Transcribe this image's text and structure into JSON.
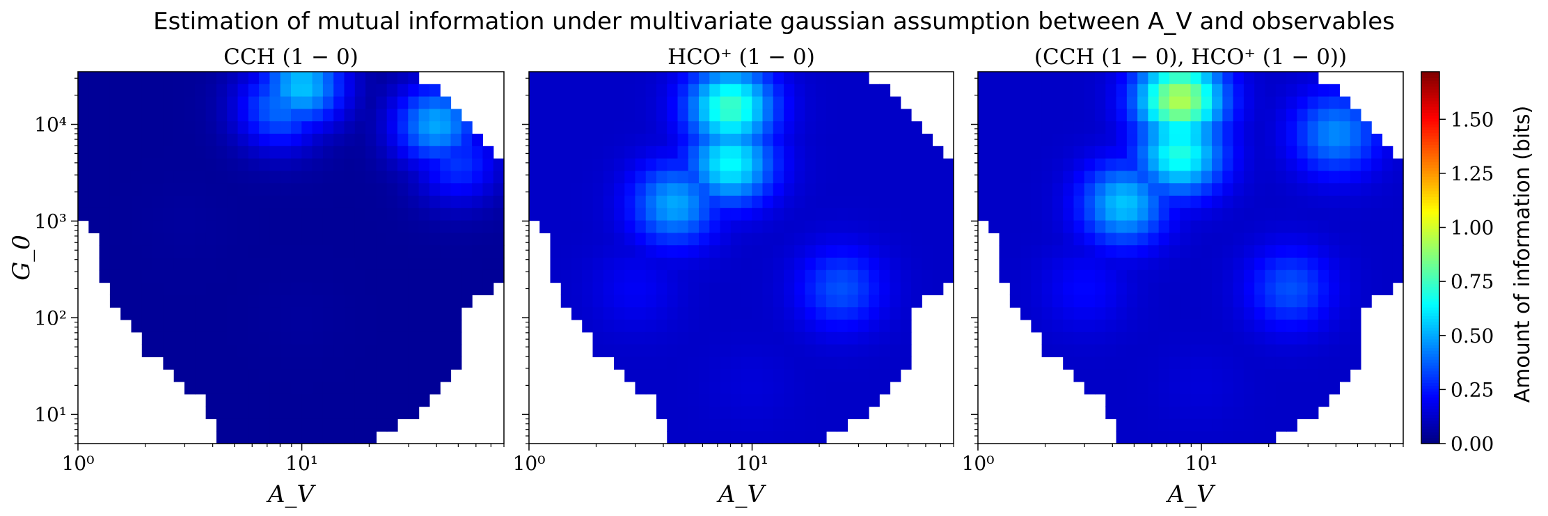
{
  "figure": {
    "title": "Estimation of mutual information under multivariate gaussian assumption between A_V and observables",
    "colorbar_label": "Amount of information (bits)",
    "colorbar": {
      "colormap": "jet",
      "vmin": 0.0,
      "vmax": 1.72,
      "ticks": [
        0.0,
        0.25,
        0.5,
        0.75,
        1.0,
        1.25,
        1.5
      ],
      "tick_labels": [
        "0.00",
        "0.25",
        "0.50",
        "0.75",
        "1.00",
        "1.25",
        "1.50"
      ]
    }
  },
  "chart_data": [
    {
      "type": "heatmap",
      "title": "CCH (1 − 0)",
      "xlabel": "A_V",
      "ylabel": "G_0",
      "xscale": "log",
      "yscale": "log",
      "xlim": [
        1,
        80
      ],
      "ylim": [
        5,
        35000
      ],
      "xticks": [
        1,
        10
      ],
      "xtick_labels": [
        "10⁰",
        "10¹"
      ],
      "yticks": [
        10,
        100,
        1000,
        10000
      ],
      "ytick_labels": [
        "10¹",
        "10²",
        "10³",
        "10⁴"
      ],
      "regions": [
        {
          "x": 10,
          "y": 25000,
          "value": 0.55
        },
        {
          "x": 8,
          "y": 15000,
          "value": 0.4
        },
        {
          "x": 40,
          "y": 10000,
          "value": 0.5
        },
        {
          "x": 50,
          "y": 4000,
          "value": 0.3
        },
        {
          "x": 3,
          "y": 1000,
          "value": 0.05
        },
        {
          "x": 10,
          "y": 100,
          "value": 0.05
        },
        {
          "x": 20,
          "y": 10,
          "value": 0.03
        }
      ]
    },
    {
      "type": "heatmap",
      "title": "HCO⁺ (1 − 0)",
      "xlabel": "A_V",
      "ylabel": "",
      "xscale": "log",
      "yscale": "log",
      "xlim": [
        1,
        80
      ],
      "ylim": [
        5,
        35000
      ],
      "xticks": [
        1,
        10
      ],
      "xtick_labels": [
        "10⁰",
        "10¹"
      ],
      "regions": [
        {
          "x": 8,
          "y": 15000,
          "value": 0.75
        },
        {
          "x": 8,
          "y": 4000,
          "value": 0.65
        },
        {
          "x": 4.5,
          "y": 1500,
          "value": 0.5
        },
        {
          "x": 25,
          "y": 200,
          "value": 0.35
        },
        {
          "x": 3,
          "y": 200,
          "value": 0.2
        },
        {
          "x": 10,
          "y": 20,
          "value": 0.15
        }
      ]
    },
    {
      "type": "heatmap",
      "title": "(CCH (1 − 0), HCO⁺ (1 − 0))",
      "xlabel": "A_V",
      "ylabel": "",
      "xscale": "log",
      "yscale": "log",
      "xlim": [
        1,
        80
      ],
      "ylim": [
        5,
        35000
      ],
      "xticks": [
        1,
        10
      ],
      "xtick_labels": [
        "10⁰",
        "10¹"
      ],
      "regions": [
        {
          "x": 8,
          "y": 18000,
          "value": 0.95
        },
        {
          "x": 8,
          "y": 5000,
          "value": 0.7
        },
        {
          "x": 4.5,
          "y": 1500,
          "value": 0.55
        },
        {
          "x": 40,
          "y": 8000,
          "value": 0.45
        },
        {
          "x": 25,
          "y": 200,
          "value": 0.35
        },
        {
          "x": 3,
          "y": 200,
          "value": 0.22
        },
        {
          "x": 10,
          "y": 20,
          "value": 0.15
        }
      ]
    }
  ]
}
